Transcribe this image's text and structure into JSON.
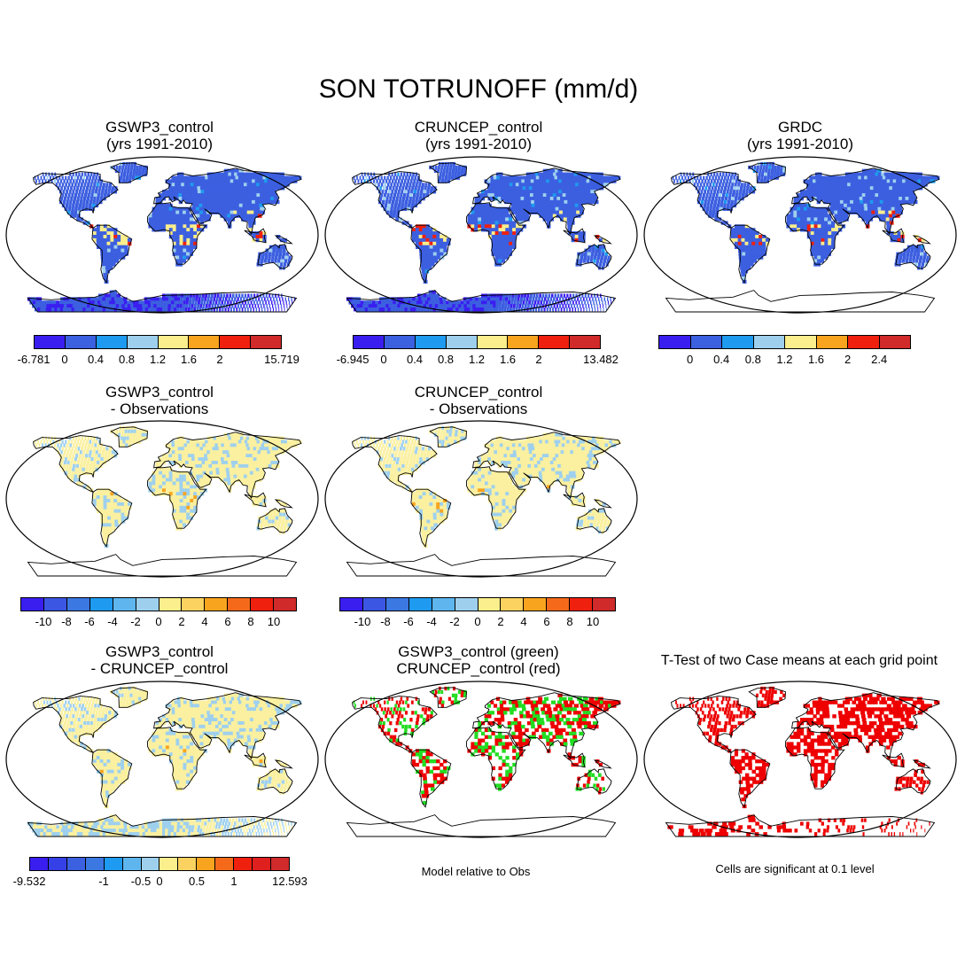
{
  "title": "SON TOTRUNOFF (mm/d)",
  "colors": {
    "abs": [
      "#3a1ef0",
      "#3b60e0",
      "#1e9bf0",
      "#9ed0ee",
      "#fbee8c",
      "#f8a41e",
      "#f0200f",
      "#d02a2a"
    ],
    "diff": [
      "#3a1ef0",
      "#3b56e3",
      "#3c78e2",
      "#1e9bf0",
      "#5fb6ee",
      "#9ed0ee",
      "#fbee8c",
      "#fbd260",
      "#f8a41e",
      "#f46a1a",
      "#f0200f",
      "#d02a2a"
    ],
    "cmp": [
      "#3a1ef0",
      "#3540e6",
      "#3b60e0",
      "#3c78e2",
      "#1e9bf0",
      "#5fb6ee",
      "#9ed0ee",
      "#fbee8c",
      "#fbd260",
      "#f8a41e",
      "#f46a1a",
      "#f0200f",
      "#e01f1f",
      "#d02a2a"
    ],
    "land_abs": "#3c5fe0",
    "land_diff": "#faf0a0",
    "ocean": "#ffffff",
    "green": "#22dd22",
    "red": "#ee0000"
  },
  "panels": [
    {
      "title1": "GSWP3_control",
      "title2": "(yrs 1991-2010)"
    },
    {
      "title1": "CRUNCEP_control",
      "title2": "(yrs 1991-2010)"
    },
    {
      "title1": "GRDC",
      "title2": "(yrs 1991-2010)"
    },
    {
      "title1": "GSWP3_control",
      "title2": "- Observations"
    },
    {
      "title1": "CRUNCEP_control",
      "title2": "- Observations"
    },
    {
      "title1": "GSWP3_control",
      "title2": "- CRUNCEP_control"
    },
    {
      "title1": "GSWP3_control (green)",
      "title2": "CRUNCEP_control (red)"
    },
    {
      "title1": "T-Test of two Case means at each grid point",
      "title2": ""
    }
  ],
  "colorbars": [
    {
      "labels": [
        "-6.781",
        "0",
        "0.4",
        "0.8",
        "1.2",
        "1.6",
        "2",
        "15.719"
      ]
    },
    {
      "labels": [
        "-6.945",
        "0",
        "0.4",
        "0.8",
        "1.2",
        "1.6",
        "2",
        "13.482"
      ]
    },
    {
      "labels": [
        "0",
        "0.4",
        "0.8",
        "1.2",
        "1.6",
        "2",
        "2.4"
      ]
    },
    {
      "labels": [
        "-10",
        "-8",
        "-6",
        "-4",
        "-2",
        "0",
        "2",
        "4",
        "6",
        "8",
        "10"
      ]
    },
    {
      "labels": [
        "-10",
        "-8",
        "-6",
        "-4",
        "-2",
        "0",
        "2",
        "4",
        "6",
        "8",
        "10"
      ]
    },
    {
      "labels": [
        "-9.532",
        "-1",
        "-0.5",
        "0",
        "0.5",
        "1",
        "12.593"
      ]
    }
  ],
  "notes": {
    "model_relative": "Model relative to Obs",
    "significance": "Cells are significant at 0.1 level"
  }
}
